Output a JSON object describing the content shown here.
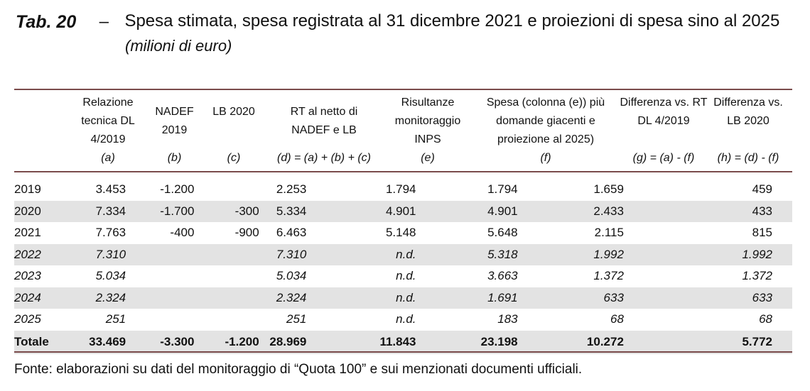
{
  "title": {
    "tab_label": "Tab. 20",
    "dash": "–",
    "text": "Spesa stimata, spesa registrata al 31 dicembre 2021 e proiezioni di spesa sino al 2025",
    "subtitle": "(milioni di euro)"
  },
  "headers": [
    {
      "label": "Relazione tecnica DL 4/2019",
      "code": "(a)"
    },
    {
      "label": "NADEF 2019",
      "code": "(b)"
    },
    {
      "label": "LB 2020",
      "code": "(c)"
    },
    {
      "label": "RT al netto di NADEF e LB",
      "code": "(d) = (a) + (b) + (c)"
    },
    {
      "label": "Risultanze monitoraggio INPS",
      "code": "(e)"
    },
    {
      "label": "Spesa (colonna (e)) più domande giacenti e proiezione al 2025)",
      "code": "(f)"
    },
    {
      "label": "Differenza vs. RT DL 4/2019",
      "code": "(g) = (a) - (f)"
    },
    {
      "label": "Differenza vs. LB 2020",
      "code": "(h) = (d) - (f)"
    }
  ],
  "rows": [
    {
      "year": "2019",
      "a": "3.453",
      "b": "-1.200",
      "c": "",
      "d": "2.253",
      "e": "1.794",
      "f": "1.794",
      "g": "1.659",
      "h": "459"
    },
    {
      "year": "2020",
      "a": "7.334",
      "b": "-1.700",
      "c": "-300",
      "d": "5.334",
      "e": "4.901",
      "f": "4.901",
      "g": "2.433",
      "h": "433"
    },
    {
      "year": "2021",
      "a": "7.763",
      "b": "-400",
      "c": "-900",
      "d": "6.463",
      "e": "5.148",
      "f": "5.648",
      "g": "2.115",
      "h": "815"
    },
    {
      "year": "2022",
      "a": "7.310",
      "b": "",
      "c": "",
      "d": "7.310",
      "e": "n.d.",
      "f": "5.318",
      "g": "1.992",
      "h": "1.992"
    },
    {
      "year": "2023",
      "a": "5.034",
      "b": "",
      "c": "",
      "d": "5.034",
      "e": "n.d.",
      "f": "3.663",
      "g": "1.372",
      "h": "1.372"
    },
    {
      "year": "2024",
      "a": "2.324",
      "b": "",
      "c": "",
      "d": "2.324",
      "e": "n.d.",
      "f": "1.691",
      "g": "633",
      "h": "633"
    },
    {
      "year": "2025",
      "a": "251",
      "b": "",
      "c": "",
      "d": "251",
      "e": "n.d.",
      "f": "183",
      "g": "68",
      "h": "68"
    }
  ],
  "total": {
    "year": "Totale",
    "a": "33.469",
    "b": "-3.300",
    "c": "-1.200",
    "d": "28.969",
    "e": "11.843",
    "f": "23.198",
    "g": "10.272",
    "h": "5.772"
  },
  "source": "Fonte: elaborazioni su dati del monitoraggio di “Quota 100” e sui menzionati documenti ufficiali."
}
